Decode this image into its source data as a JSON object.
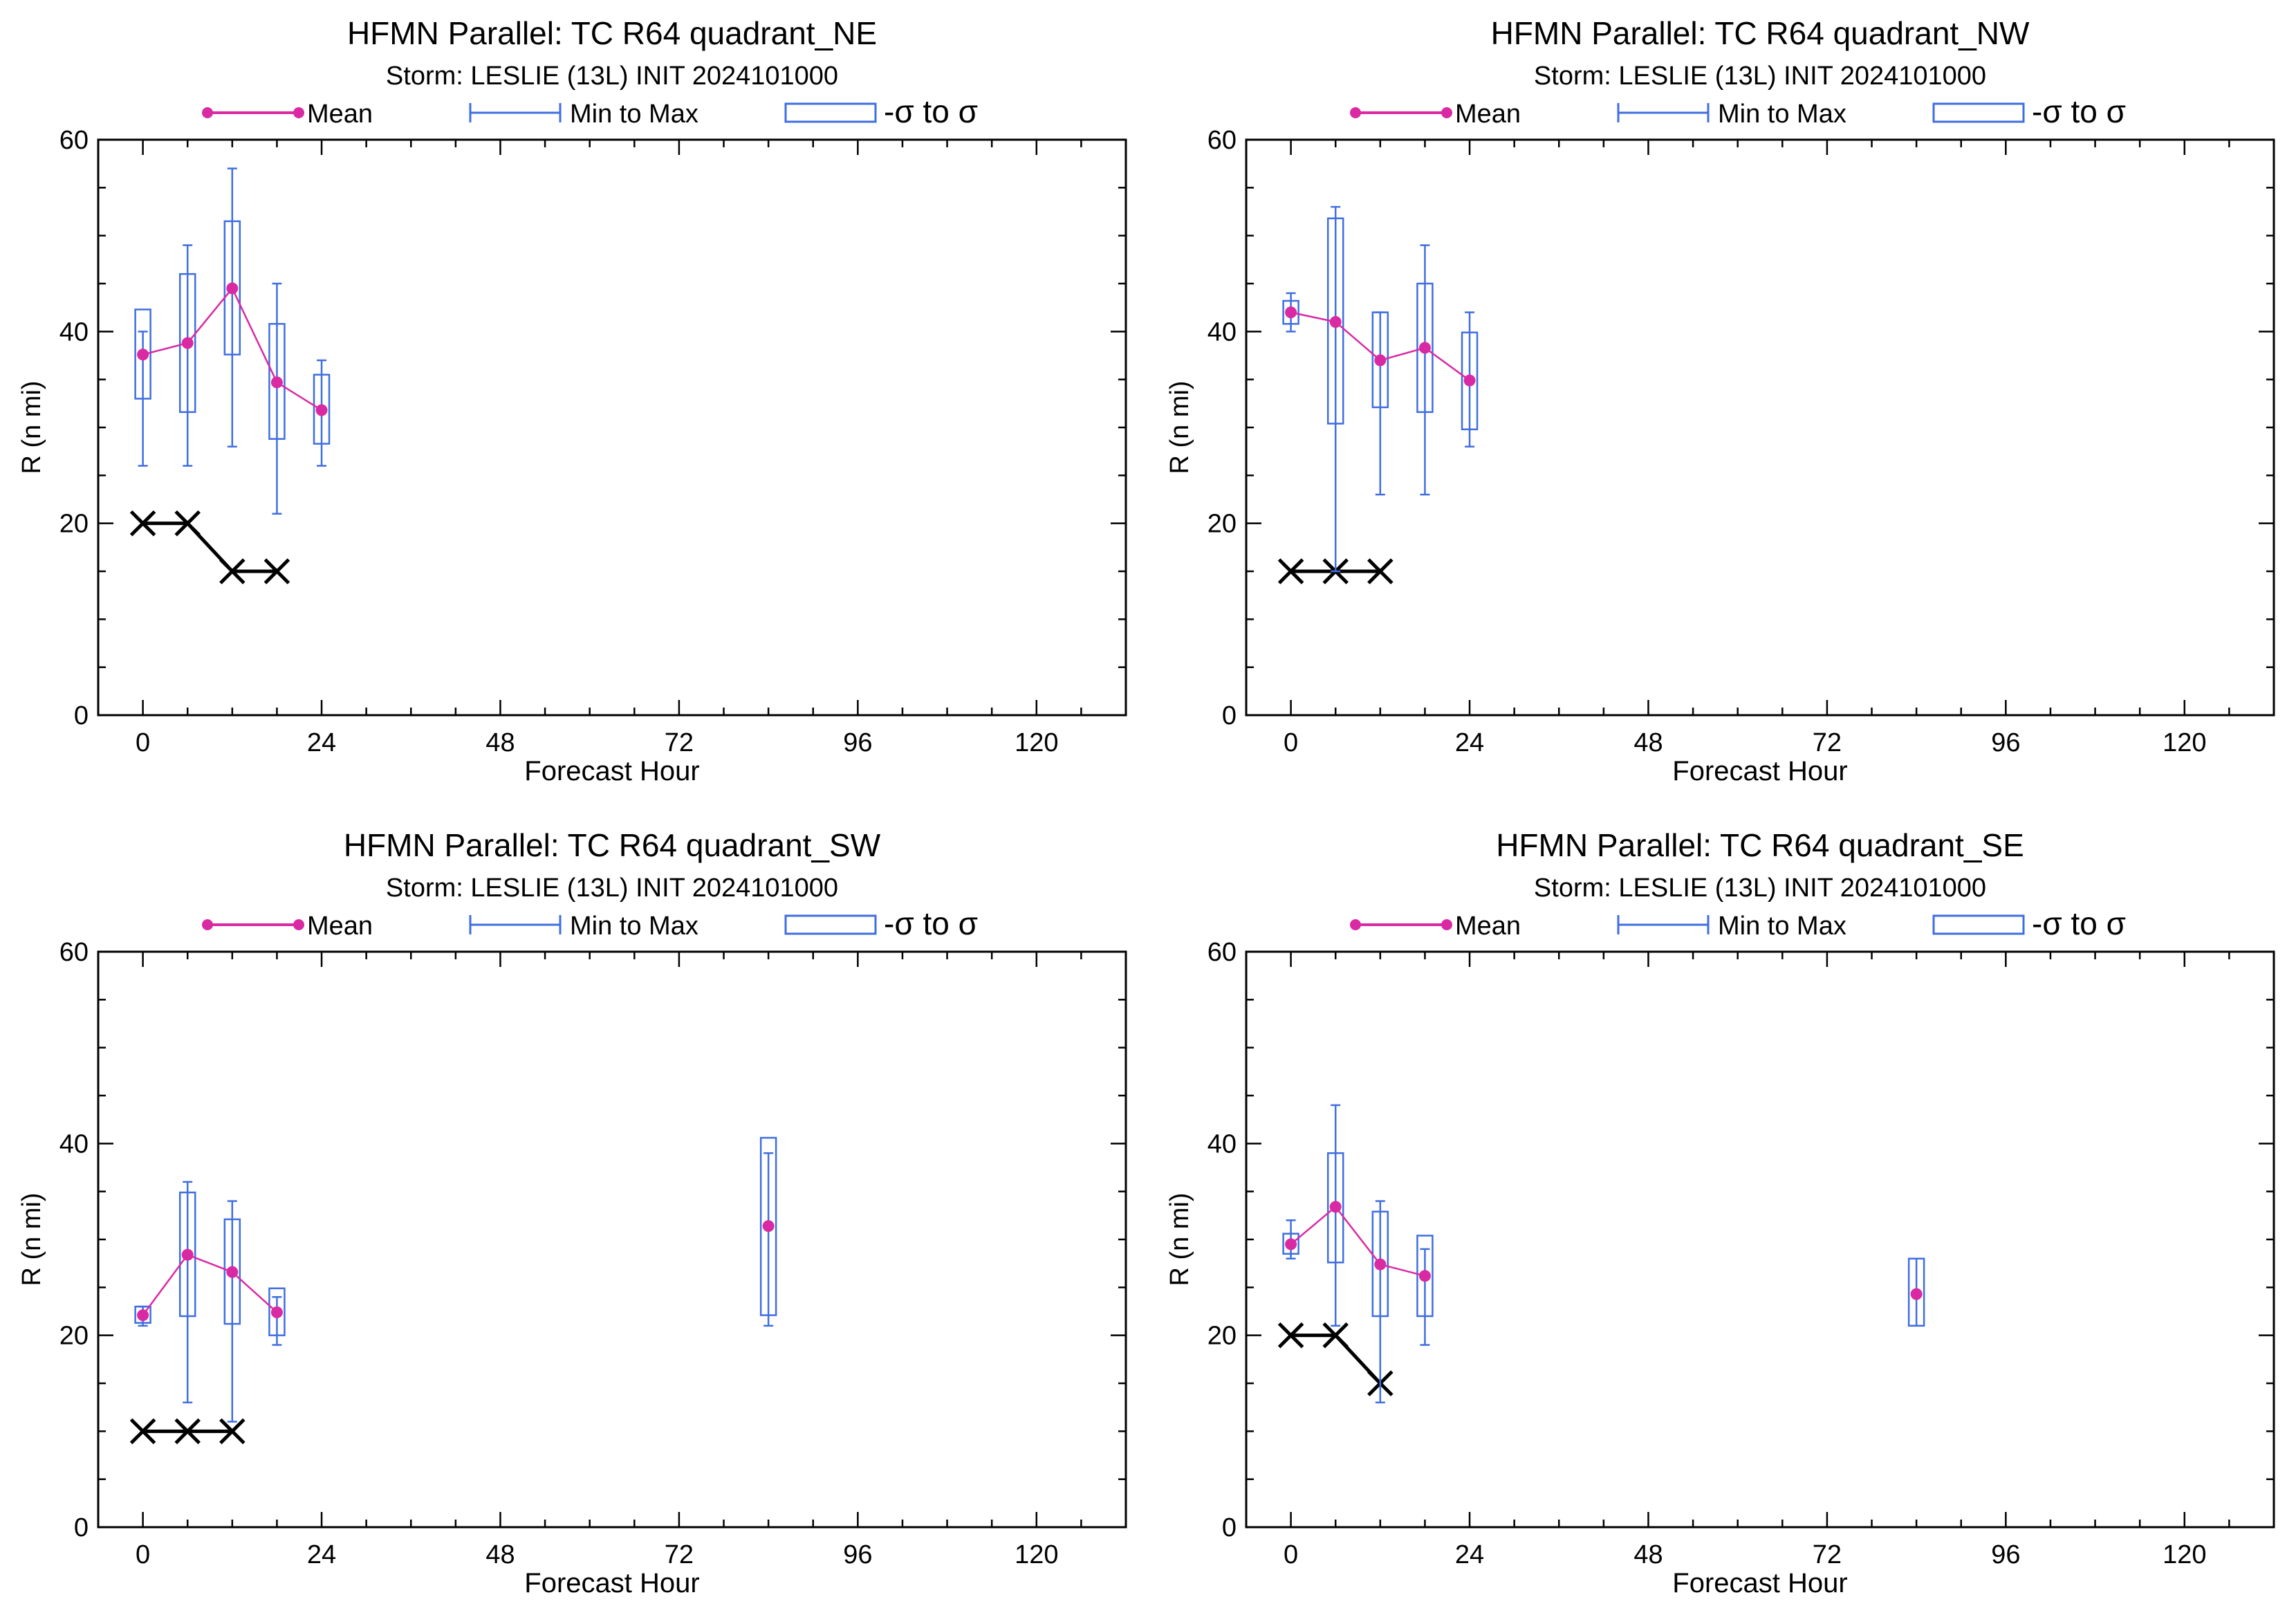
{
  "colors": {
    "mean": "#d92aa3",
    "range": "#3f6ee0",
    "sigma": "#3f6ee0",
    "obs": "#000000",
    "axis": "#000000"
  },
  "legend": {
    "mean_label": "Mean",
    "range_label": "Min to Max",
    "sigma_label": "-σ to σ"
  },
  "chart_data": [
    {
      "type": "box",
      "title": "HFMN Parallel: TC  R64 quadrant_NE",
      "subtitle": "Storm: LESLIE (13L) INIT 2024101000",
      "xlabel": "Forecast Hour",
      "ylabel": "R (n mi)",
      "xlim": [
        -6,
        132
      ],
      "ylim": [
        0,
        60
      ],
      "xticks": [
        0,
        24,
        48,
        72,
        96,
        120
      ],
      "yticks": [
        0,
        20,
        40,
        60
      ],
      "grid": false,
      "legend_position": "top",
      "boxes": [
        {
          "x": 0,
          "min": 26,
          "max": 40,
          "sd_lo": 33,
          "sd_hi": 42.3,
          "mean": 37.6
        },
        {
          "x": 6,
          "min": 26,
          "max": 49,
          "sd_lo": 31.6,
          "sd_hi": 46,
          "mean": 38.8
        },
        {
          "x": 12,
          "min": 28,
          "max": 57,
          "sd_lo": 37.6,
          "sd_hi": 51.5,
          "mean": 44.5
        },
        {
          "x": 18,
          "min": 21,
          "max": 45,
          "sd_lo": 28.8,
          "sd_hi": 40.8,
          "mean": 34.7
        },
        {
          "x": 24,
          "min": 26,
          "max": 37,
          "sd_lo": 28.3,
          "sd_hi": 35.5,
          "mean": 31.8
        }
      ],
      "observed": [
        {
          "x": 0,
          "y": 20
        },
        {
          "x": 6,
          "y": 20
        },
        {
          "x": 12,
          "y": 15
        },
        {
          "x": 18,
          "y": 15
        }
      ]
    },
    {
      "type": "box",
      "title": "HFMN Parallel: TC  R64 quadrant_NW",
      "subtitle": "Storm: LESLIE (13L) INIT 2024101000",
      "xlabel": "Forecast Hour",
      "ylabel": "R (n mi)",
      "xlim": [
        -6,
        132
      ],
      "ylim": [
        0,
        60
      ],
      "xticks": [
        0,
        24,
        48,
        72,
        96,
        120
      ],
      "yticks": [
        0,
        20,
        40,
        60
      ],
      "grid": false,
      "legend_position": "top",
      "boxes": [
        {
          "x": 0,
          "min": 40,
          "max": 44,
          "sd_lo": 40.8,
          "sd_hi": 43.2,
          "mean": 42
        },
        {
          "x": 6,
          "min": 15,
          "max": 53,
          "sd_lo": 30.4,
          "sd_hi": 51.8,
          "mean": 41
        },
        {
          "x": 12,
          "min": 23,
          "max": 42,
          "sd_lo": 32.1,
          "sd_hi": 42,
          "mean": 37
        },
        {
          "x": 18,
          "min": 23,
          "max": 49,
          "sd_lo": 31.6,
          "sd_hi": 45,
          "mean": 38.3
        },
        {
          "x": 24,
          "min": 28,
          "max": 42,
          "sd_lo": 29.8,
          "sd_hi": 39.9,
          "mean": 34.9
        }
      ],
      "observed": [
        {
          "x": 0,
          "y": 15
        },
        {
          "x": 6,
          "y": 15
        },
        {
          "x": 12,
          "y": 15
        }
      ]
    },
    {
      "type": "box",
      "title": "HFMN Parallel: TC  R64 quadrant_SW",
      "subtitle": "Storm: LESLIE (13L) INIT 2024101000",
      "xlabel": "Forecast Hour",
      "ylabel": "R (n mi)",
      "xlim": [
        -6,
        132
      ],
      "ylim": [
        0,
        60
      ],
      "xticks": [
        0,
        24,
        48,
        72,
        96,
        120
      ],
      "yticks": [
        0,
        20,
        40,
        60
      ],
      "grid": false,
      "legend_position": "top",
      "boxes": [
        {
          "x": 0,
          "min": 21,
          "max": 23,
          "sd_lo": 21.3,
          "sd_hi": 23,
          "mean": 22.1
        },
        {
          "x": 6,
          "min": 13,
          "max": 36,
          "sd_lo": 22,
          "sd_hi": 34.9,
          "mean": 28.4
        },
        {
          "x": 12,
          "min": 11,
          "max": 34,
          "sd_lo": 21.2,
          "sd_hi": 32.1,
          "mean": 26.6
        },
        {
          "x": 18,
          "min": 19,
          "max": 24,
          "sd_lo": 20,
          "sd_hi": 24.9,
          "mean": 22.4
        },
        {
          "x": 84,
          "min": 21,
          "max": 39,
          "sd_lo": 22.1,
          "sd_hi": 40.6,
          "mean": 31.4
        }
      ],
      "observed": [
        {
          "x": 0,
          "y": 10
        },
        {
          "x": 6,
          "y": 10
        },
        {
          "x": 12,
          "y": 10
        }
      ]
    },
    {
      "type": "box",
      "title": "HFMN Parallel: TC  R64 quadrant_SE",
      "subtitle": "Storm: LESLIE (13L) INIT 2024101000",
      "xlabel": "Forecast Hour",
      "ylabel": "R (n mi)",
      "xlim": [
        -6,
        132
      ],
      "ylim": [
        0,
        60
      ],
      "xticks": [
        0,
        24,
        48,
        72,
        96,
        120
      ],
      "yticks": [
        0,
        20,
        40,
        60
      ],
      "grid": false,
      "legend_position": "top",
      "boxes": [
        {
          "x": 0,
          "min": 28,
          "max": 32,
          "sd_lo": 28.5,
          "sd_hi": 30.6,
          "mean": 29.5
        },
        {
          "x": 6,
          "min": 21,
          "max": 44,
          "sd_lo": 27.6,
          "sd_hi": 39,
          "mean": 33.4
        },
        {
          "x": 12,
          "min": 13,
          "max": 34,
          "sd_lo": 22,
          "sd_hi": 32.9,
          "mean": 27.4
        },
        {
          "x": 18,
          "min": 19,
          "max": 29,
          "sd_lo": 22,
          "sd_hi": 30.4,
          "mean": 26.2
        },
        {
          "x": 84,
          "min": 21,
          "max": 28,
          "sd_lo": 21,
          "sd_hi": 28,
          "mean": 24.3
        }
      ],
      "observed": [
        {
          "x": 0,
          "y": 20
        },
        {
          "x": 6,
          "y": 20
        },
        {
          "x": 12,
          "y": 15
        }
      ]
    }
  ]
}
